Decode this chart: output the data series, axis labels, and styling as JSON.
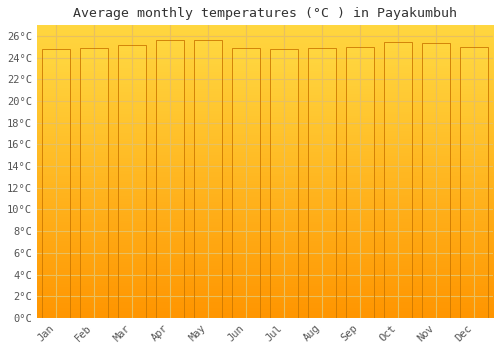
{
  "title": "Average monthly temperatures (°C ) in Payakumbuh",
  "months": [
    "Jan",
    "Feb",
    "Mar",
    "Apr",
    "May",
    "Jun",
    "Jul",
    "Aug",
    "Sep",
    "Oct",
    "Nov",
    "Dec"
  ],
  "temperatures": [
    24.8,
    24.9,
    25.2,
    25.6,
    25.6,
    24.9,
    24.8,
    24.9,
    25.0,
    25.5,
    25.4,
    25.0
  ],
  "ylim": [
    0,
    27
  ],
  "yticks": [
    0,
    2,
    4,
    6,
    8,
    10,
    12,
    14,
    16,
    18,
    20,
    22,
    24,
    26
  ],
  "bar_color_light": "#FFD740",
  "bar_color_dark": "#FF9500",
  "background_top": "#FFD740",
  "background_bottom": "#FF9500",
  "grid_color": "#E8C060",
  "title_fontsize": 9.5,
  "tick_fontsize": 7.5,
  "font_family": "monospace"
}
